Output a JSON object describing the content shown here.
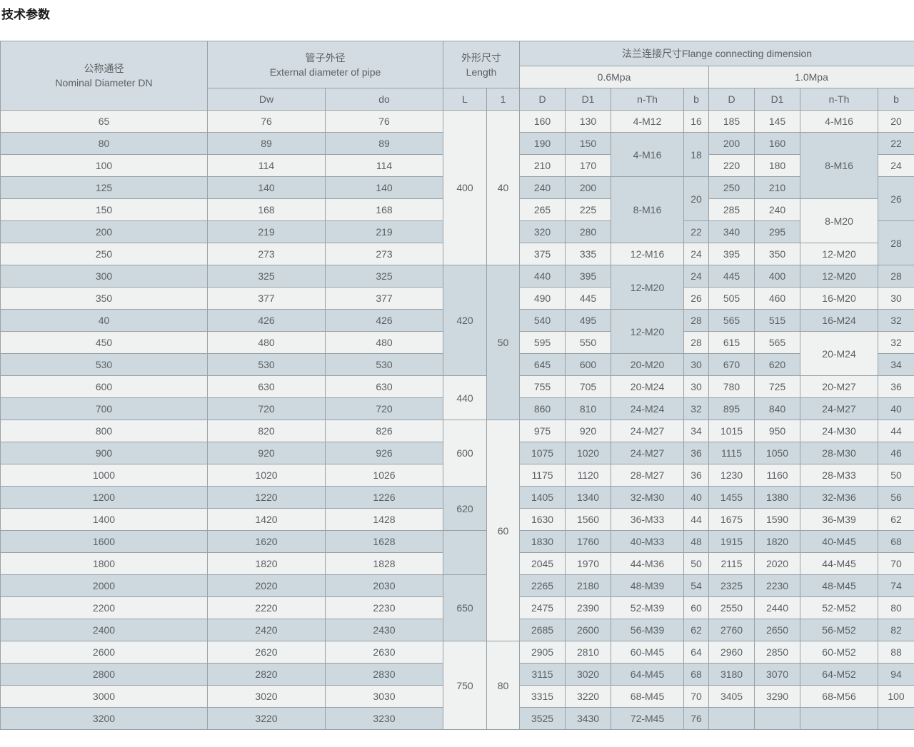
{
  "page_title": "技术参数",
  "table": {
    "header": {
      "nominal_zh": "公称通径",
      "nominal_en": "Nominal Diameter DN",
      "pipe_zh": "管子外径",
      "pipe_en": "External diameter of pipe",
      "size_zh": "外形尺寸",
      "size_en": "Length",
      "flange_title": "法兰连接尺寸Flange connecting dimension",
      "pressure_06": "0.6Mpa",
      "pressure_10": "1.0Mpa",
      "sub": [
        "Dw",
        "do",
        "L",
        "1",
        "D",
        "D1",
        "n-Th",
        "b",
        "D",
        "D1",
        "n-Th",
        "b"
      ]
    },
    "rows": [
      [
        "65",
        "76",
        "76",
        [
          "400",
          7
        ],
        [
          "40",
          7
        ],
        "160",
        "130",
        "4-M12",
        "16",
        "185",
        "145",
        "4-M16",
        "20"
      ],
      [
        "80",
        "89",
        "89",
        "190",
        "150",
        [
          "4-M16",
          2
        ],
        [
          "18",
          2
        ],
        "200",
        "160",
        [
          "8-M16",
          3
        ],
        "22"
      ],
      [
        "100",
        "114",
        "114",
        "210",
        "170",
        "220",
        "180",
        "24"
      ],
      [
        "125",
        "140",
        "140",
        "240",
        "200",
        [
          "8-M16",
          3
        ],
        [
          "20",
          2
        ],
        "250",
        "210",
        [
          "26",
          2
        ]
      ],
      [
        "150",
        "168",
        "168",
        "265",
        "225",
        "285",
        "240",
        [
          "8-M20",
          2
        ]
      ],
      [
        "200",
        "219",
        "219",
        "320",
        "280",
        "22",
        "340",
        "295",
        [
          "28",
          2
        ]
      ],
      [
        "250",
        "273",
        "273",
        "375",
        "335",
        "12-M16",
        "24",
        "395",
        "350",
        "12-M20"
      ],
      [
        "300",
        "325",
        "325",
        [
          "420",
          5
        ],
        [
          "50",
          7
        ],
        "440",
        "395",
        [
          "12-M20",
          2
        ],
        "24",
        "445",
        "400",
        "12-M20",
        "28"
      ],
      [
        "350",
        "377",
        "377",
        "490",
        "445",
        "26",
        "505",
        "460",
        "16-M20",
        "30"
      ],
      [
        "40",
        "426",
        "426",
        "540",
        "495",
        [
          "12-M20",
          2
        ],
        "28",
        "565",
        "515",
        "16-M24",
        "32"
      ],
      [
        "450",
        "480",
        "480",
        "595",
        "550",
        "28",
        "615",
        "565",
        [
          "20-M24",
          2
        ],
        "32"
      ],
      [
        "530",
        "530",
        "530",
        "645",
        "600",
        "20-M20",
        "30",
        "670",
        "620",
        "34"
      ],
      [
        "600",
        "630",
        "630",
        [
          "440",
          2
        ],
        "755",
        "705",
        "20-M24",
        "30",
        "780",
        "725",
        "20-M27",
        "36"
      ],
      [
        "700",
        "720",
        "720",
        "860",
        "810",
        "24-M24",
        "32",
        "895",
        "840",
        "24-M27",
        "40"
      ],
      [
        "800",
        "820",
        "826",
        [
          "600",
          3
        ],
        [
          "60",
          10
        ],
        "975",
        "920",
        "24-M27",
        "34",
        "1015",
        "950",
        "24-M30",
        "44"
      ],
      [
        "900",
        "920",
        "926",
        "1075",
        "1020",
        "24-M27",
        "36",
        "1115",
        "1050",
        "28-M30",
        "46"
      ],
      [
        "1000",
        "1020",
        "1026",
        "1175",
        "1120",
        "28-M27",
        "36",
        "1230",
        "1160",
        "28-M33",
        "50"
      ],
      [
        "1200",
        "1220",
        "1226",
        [
          "620",
          2
        ],
        "1405",
        "1340",
        "32-M30",
        "40",
        "1455",
        "1380",
        "32-M36",
        "56"
      ],
      [
        "1400",
        "1420",
        "1428",
        "1630",
        "1560",
        "36-M33",
        "44",
        "1675",
        "1590",
        "36-M39",
        "62"
      ],
      [
        "1600",
        "1620",
        "1628",
        [
          "",
          2
        ],
        "1830",
        "1760",
        "40-M33",
        "48",
        "1915",
        "1820",
        "40-M45",
        "68"
      ],
      [
        "1800",
        "1820",
        "1828",
        "2045",
        "1970",
        "44-M36",
        "50",
        "2115",
        "2020",
        "44-M45",
        "70"
      ],
      [
        "2000",
        "2020",
        "2030",
        [
          "650",
          3
        ],
        "2265",
        "2180",
        "48-M39",
        "54",
        "2325",
        "2230",
        "48-M45",
        "74"
      ],
      [
        "2200",
        "2220",
        "2230",
        "2475",
        "2390",
        "52-M39",
        "60",
        "2550",
        "2440",
        "52-M52",
        "80"
      ],
      [
        "2400",
        "2420",
        "2430",
        "2685",
        "2600",
        "56-M39",
        "62",
        "2760",
        "2650",
        "56-M52",
        "82"
      ],
      [
        "2600",
        "2620",
        "2630",
        [
          "750",
          4
        ],
        [
          "80",
          4
        ],
        "2905",
        "2810",
        "60-M45",
        "64",
        "2960",
        "2850",
        "60-M52",
        "88"
      ],
      [
        "2800",
        "2820",
        "2830",
        "3115",
        "3020",
        "64-M45",
        "68",
        "3180",
        "3070",
        "64-M52",
        "94"
      ],
      [
        "3000",
        "3020",
        "3030",
        "3315",
        "3220",
        "68-M45",
        "70",
        "3405",
        "3290",
        "68-M56",
        "100"
      ],
      [
        "3200",
        "3220",
        "3230",
        "3525",
        "3430",
        "72-M45",
        "76",
        "",
        "",
        "",
        ""
      ]
    ]
  },
  "colors": {
    "row_light": "#f0f1f1",
    "row_blue": "#cdd8df",
    "header_blue": "#d2dce2",
    "header_light": "#eef0f0",
    "border": "#9aa1a6",
    "text": "#5c6063",
    "header_text": "#4e5356",
    "title_color": "#1a1a1a"
  }
}
